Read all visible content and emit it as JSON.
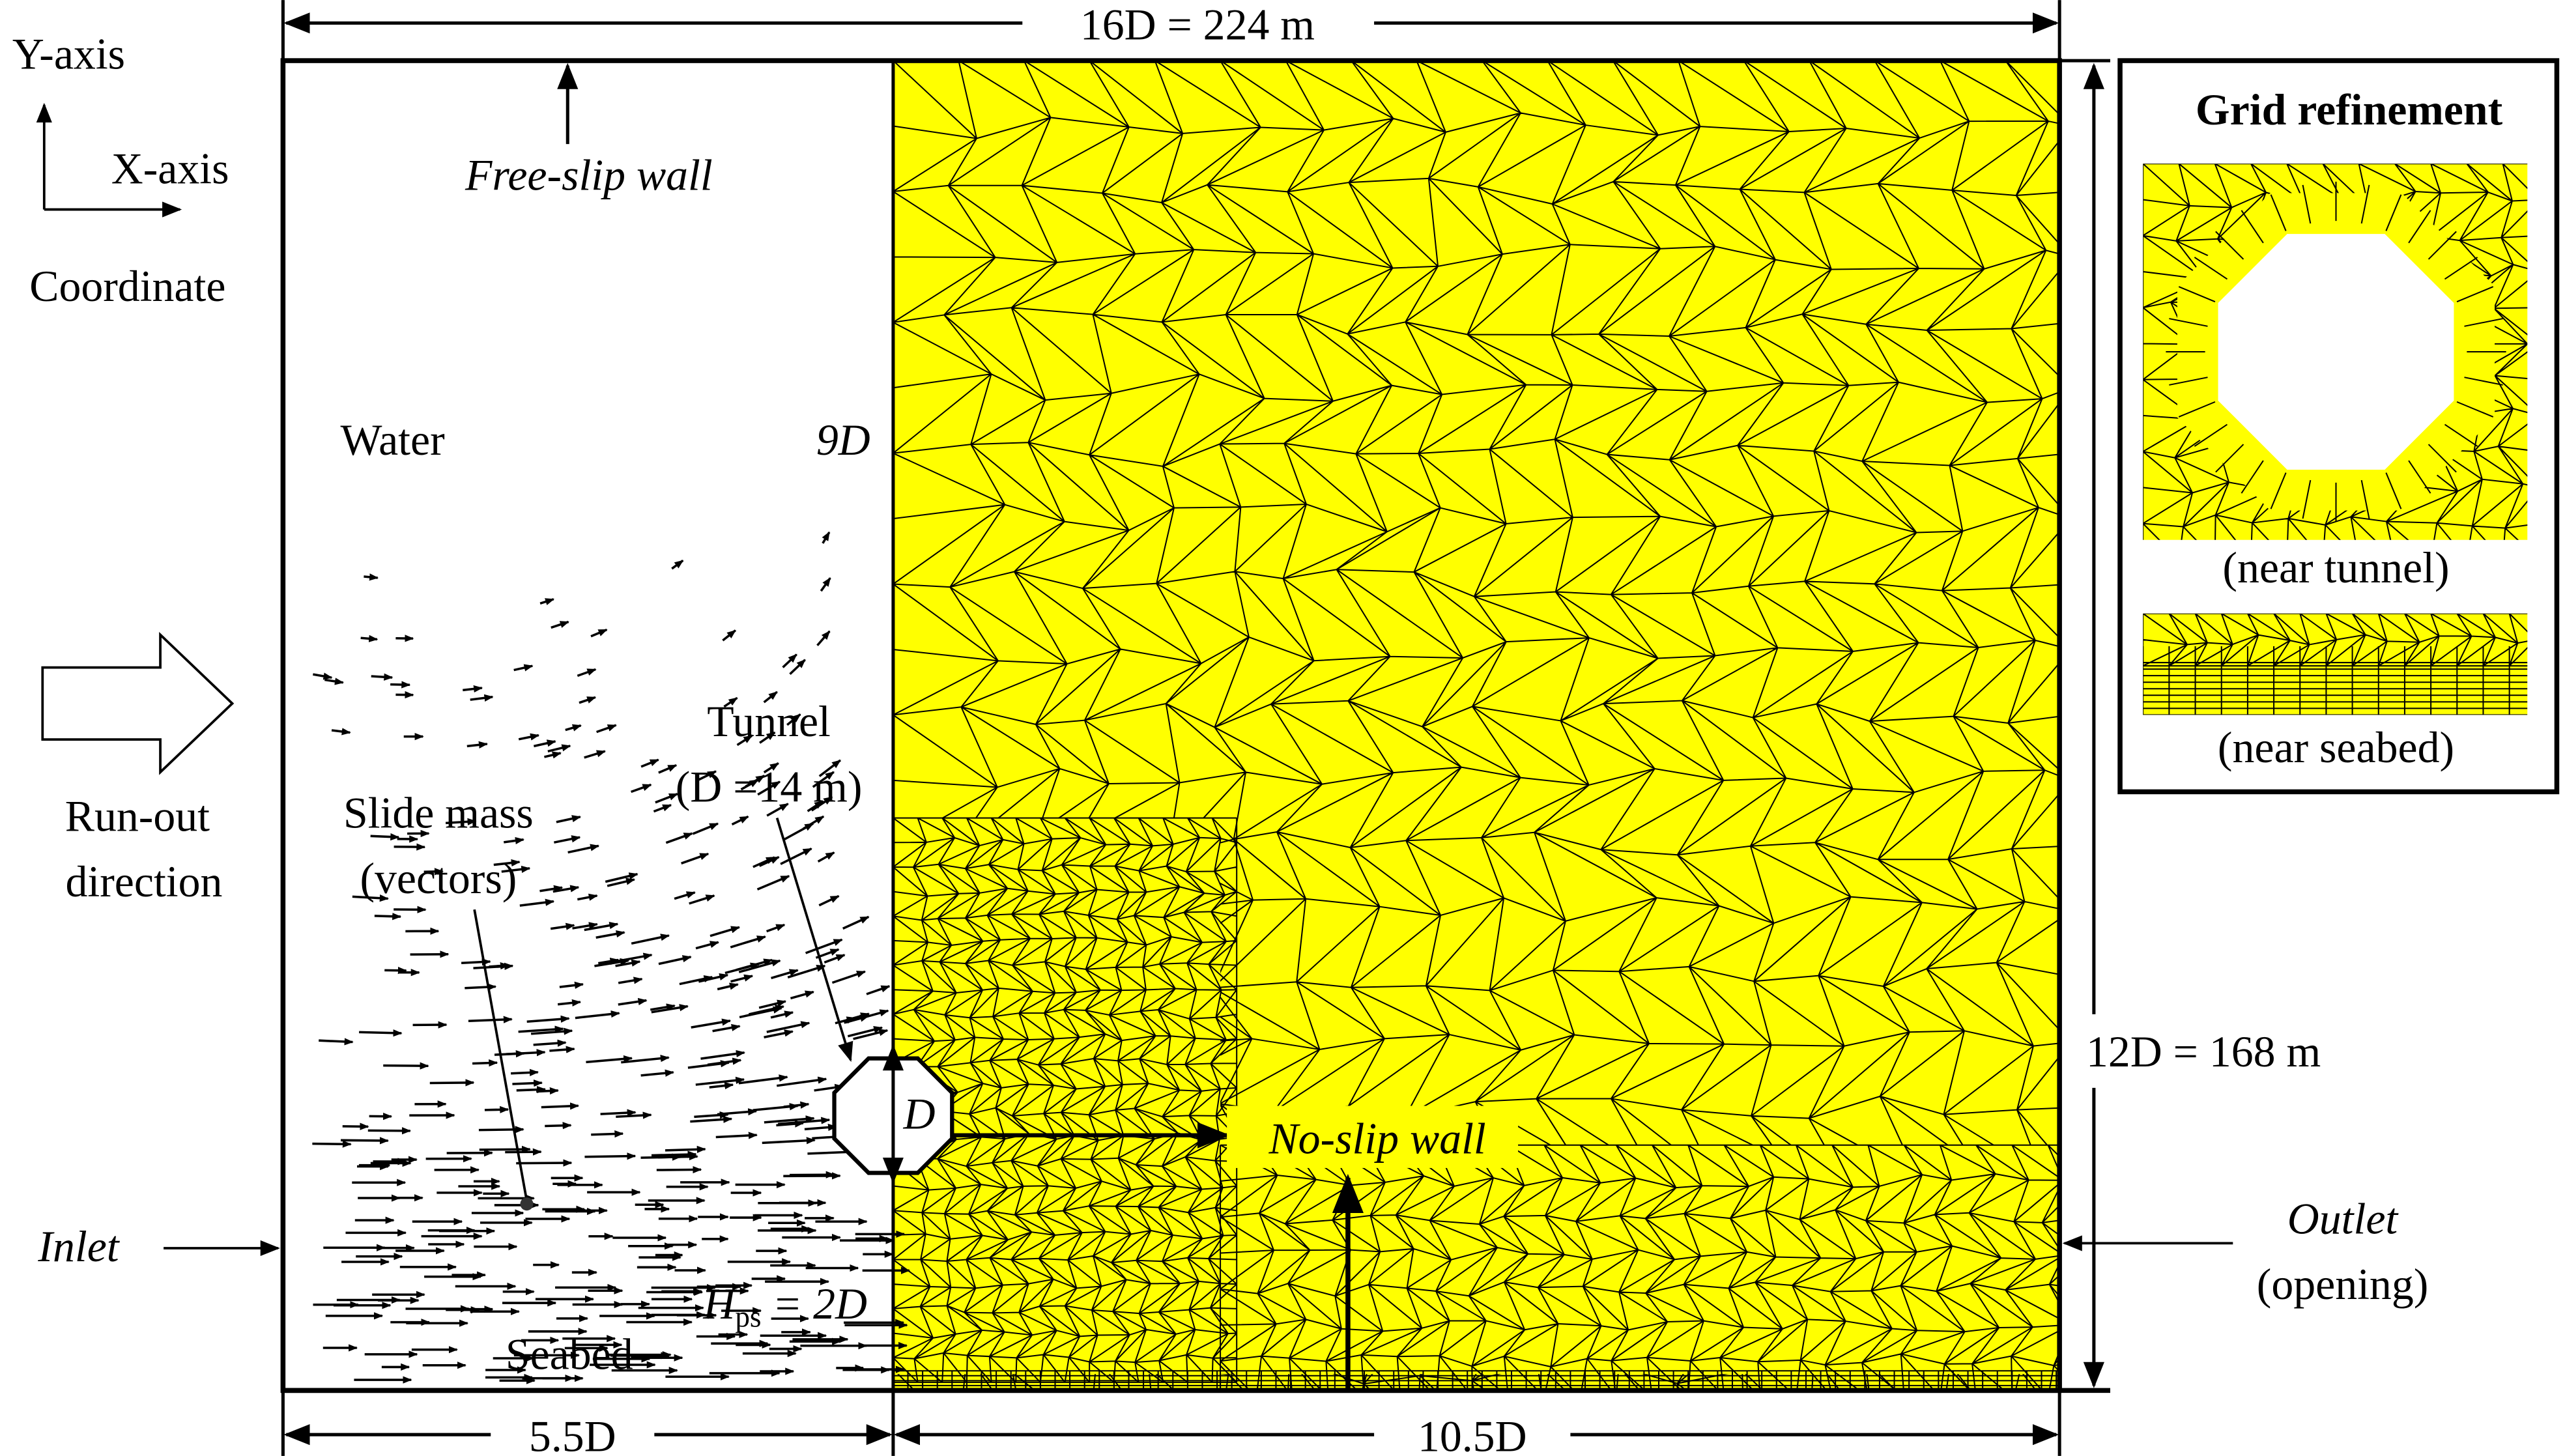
{
  "coordinate": {
    "y_axis": "Y-axis",
    "x_axis": "X-axis",
    "label": "Coordinate"
  },
  "dimensions": {
    "width": "16D = 224 m",
    "height": "12D = 168 m",
    "left": "5.5D",
    "right": "10.5D",
    "tunnel_height": "9D"
  },
  "boundaries": {
    "top": "Free-slip wall",
    "tunnel": "No-slip wall",
    "inlet": "Inlet",
    "outlet": [
      "Outlet",
      "(opening)"
    ]
  },
  "regions": {
    "water": "Water",
    "seabed": "Seabed",
    "run_out": [
      "Run-out",
      "direction"
    ],
    "slide_mass": [
      "Slide mass",
      "(vectors)"
    ],
    "tunnel": [
      "Tunnel",
      "(D =14 m)"
    ],
    "tunnel_d": "D",
    "burial": {
      "symbol": "H",
      "subscript": "ps",
      "rest": " = 2D"
    }
  },
  "inset": {
    "title": "Grid refinement",
    "near_tunnel": "(near tunnel)",
    "near_seabed": "(near seabed)"
  }
}
